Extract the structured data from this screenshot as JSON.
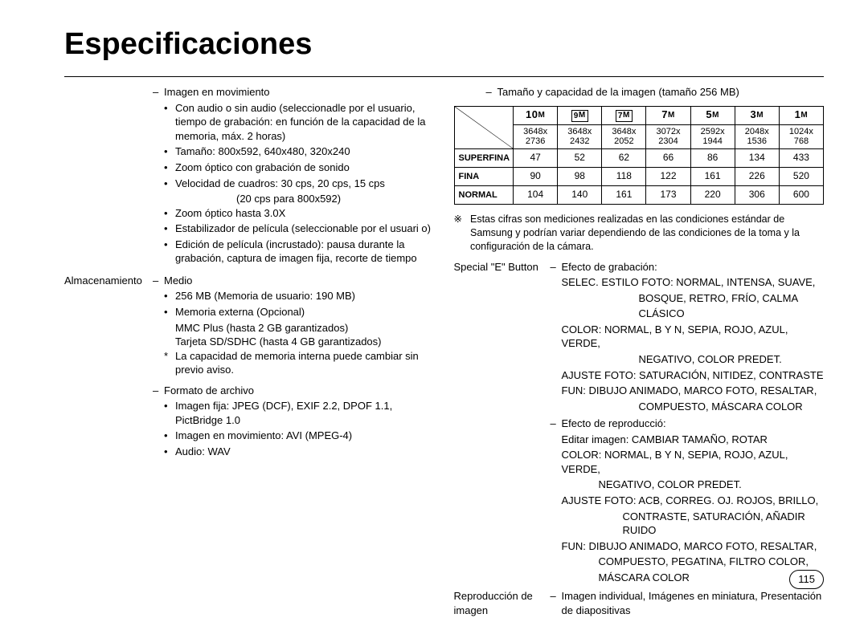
{
  "title": "Especificaciones",
  "left": {
    "moving_image_header": "Imagen en movimiento",
    "moving_bullets": [
      "Con audio o sin audio (seleccionadle por el usuario, tiempo de grabación: en función de la capacidad de la memoria, máx. 2 horas)",
      "Tamaño: 800x592, 640x480, 320x240",
      "Zoom óptico con grabación de sonido",
      "Velocidad de cuadros: 30 cps, 20 cps, 15 cps",
      "Zoom óptico hasta 3.0X",
      "Estabilizador de película (seleccionable por el usuari o)",
      "Edición de película (incrustado): pausa durante la grabación, captura de imagen fija, recorte de tiempo"
    ],
    "moving_subnote": "(20 cps para 800x592)",
    "storage_label": "Almacenamiento",
    "storage_medio": "Medio",
    "storage_bullets_a": [
      "256 MB (Memoria de usuario: 190 MB)",
      "Memoria externa (Opcional)"
    ],
    "storage_sub_a": "MMC Plus (hasta 2 GB garantizados)",
    "storage_sub_b": "Tarjeta SD/SDHC (hasta 4 GB garantizados)",
    "storage_bullets_b": [
      "La capacidad de memoria interna puede cambiar sin previo aviso."
    ],
    "storage_format": "Formato de archivo",
    "storage_format_bullets": [
      "Imagen fija: JPEG (DCF), EXIF 2.2, DPOF 1.1, PictBridge 1.0",
      "Imagen en movimiento: AVI (MPEG-4)",
      "Audio: WAV"
    ]
  },
  "right": {
    "cap_title": "Tamaño y capacidad de la imagen (tamaño 256 MB)",
    "headers_main": [
      "10",
      "9",
      "7",
      "7",
      "5",
      "3",
      "1"
    ],
    "headers_suffix": "M",
    "box_headers": [
      1,
      2
    ],
    "resolutions": [
      "3648x\n2736",
      "3648x\n2432",
      "3648x\n2052",
      "3072x\n2304",
      "2592x\n1944",
      "2048x\n1536",
      "1024x\n768"
    ],
    "row_labels": [
      "SUPERFINA",
      "FINA",
      "NORMAL"
    ],
    "rows": [
      [
        47,
        52,
        62,
        66,
        86,
        134,
        433
      ],
      [
        90,
        98,
        118,
        122,
        161,
        226,
        520
      ],
      [
        104,
        140,
        161,
        173,
        220,
        306,
        600
      ]
    ],
    "note_symbol": "※",
    "note_text": "Estas cifras son mediciones realizadas en las condiciones estándar de Samsung y podrían variar dependiendo de las condiciones de la toma y la configuración de la cámara.",
    "e_button_label": "Special \"E\" Button",
    "e_rec_header": "Efecto de grabación:",
    "e_rec_lines": [
      "SELEC. ESTILO FOTO: NORMAL, INTENSA, SUAVE,",
      "BOSQUE, RETRO, FRÍO, CALMA",
      "CLÁSICO",
      "COLOR: NORMAL, B Y N, SEPIA, ROJO, AZUL, VERDE,",
      "NEGATIVO, COLOR PREDET.",
      "AJUSTE FOTO: SATURACIÓN, NITIDEZ, CONTRASTE",
      "FUN: DIBUJO ANIMADO, MARCO FOTO, RESALTAR,",
      "COMPUESTO, MÁSCARA COLOR"
    ],
    "e_play_header": "Efecto de reproducció:",
    "e_play_lines": [
      "Editar imagen:  CAMBIAR TAMAÑO, ROTAR",
      "COLOR: NORMAL, B Y N, SEPIA, ROJO, AZUL, VERDE,",
      "NEGATIVO, COLOR PREDET.",
      "AJUSTE FOTO: ACB, CORREG. OJ. ROJOS, BRILLO,",
      "CONTRASTE, SATURACIÓN, AÑADIR RUIDO",
      "FUN: DIBUJO ANIMADO, MARCO FOTO, RESALTAR,",
      "COMPUESTO, PEGATINA, FILTRO COLOR,",
      "MÁSCARA COLOR"
    ],
    "e_play_extra_indent_idx": [
      1,
      2,
      4,
      6,
      7
    ],
    "playback_label": "Reproducción de imagen",
    "playback_body": "Imagen individual, Imágenes en miniatura, Presentación de diapositivas"
  },
  "page_num": "115",
  "style": {
    "bg": "#ffffff",
    "text": "#000000",
    "border": "#000000",
    "title_font_size": 38,
    "body_font_size": 13,
    "table_font_size": 12
  }
}
